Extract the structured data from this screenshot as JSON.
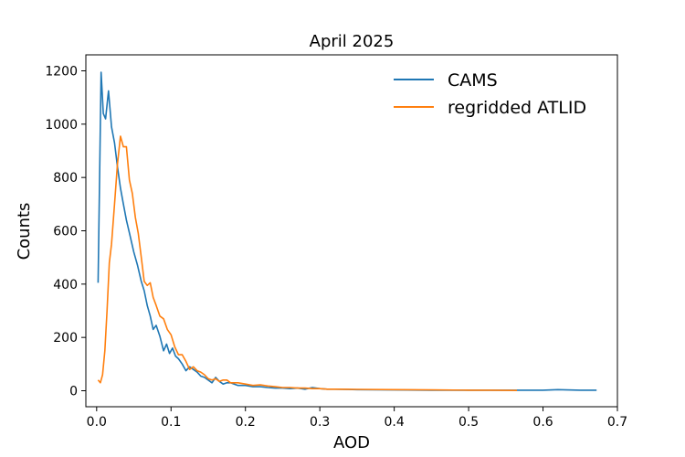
{
  "chart_data": {
    "type": "line",
    "title": "April 2025",
    "xlabel": "AOD",
    "ylabel": "Counts",
    "xlim": [
      -0.0145,
      0.7
    ],
    "ylim": [
      -60,
      1260
    ],
    "xticks": [
      "0.0",
      "0.1",
      "0.2",
      "0.3",
      "0.4",
      "0.5",
      "0.6",
      "0.7"
    ],
    "yticks": [
      "0",
      "200",
      "400",
      "600",
      "800",
      "1000",
      "1200"
    ],
    "grid": false,
    "legend_position": "top-right",
    "series": [
      {
        "name": "CAMS",
        "color": "#1f77b4",
        "x": [
          0.002,
          0.006,
          0.009,
          0.012,
          0.016,
          0.02,
          0.024,
          0.028,
          0.032,
          0.036,
          0.04,
          0.045,
          0.05,
          0.055,
          0.06,
          0.064,
          0.068,
          0.072,
          0.076,
          0.08,
          0.085,
          0.09,
          0.094,
          0.098,
          0.102,
          0.106,
          0.11,
          0.115,
          0.12,
          0.125,
          0.13,
          0.135,
          0.14,
          0.145,
          0.15,
          0.155,
          0.16,
          0.165,
          0.17,
          0.175,
          0.18,
          0.19,
          0.2,
          0.21,
          0.22,
          0.23,
          0.24,
          0.25,
          0.26,
          0.27,
          0.28,
          0.29,
          0.3,
          0.31,
          0.32,
          0.33,
          0.35,
          0.4,
          0.45,
          0.5,
          0.55,
          0.6,
          0.62,
          0.65,
          0.672
        ],
        "y": [
          405,
          1195,
          1040,
          1020,
          1125,
          990,
          930,
          840,
          760,
          700,
          640,
          580,
          520,
          470,
          410,
          375,
          320,
          280,
          230,
          245,
          205,
          150,
          175,
          140,
          160,
          130,
          120,
          100,
          75,
          90,
          80,
          70,
          55,
          50,
          40,
          30,
          50,
          35,
          25,
          30,
          30,
          20,
          20,
          15,
          15,
          12,
          10,
          10,
          8,
          10,
          6,
          12,
          8,
          6,
          6,
          5,
          4,
          3,
          2,
          2,
          2,
          2,
          4,
          2,
          2
        ]
      },
      {
        "name": "regridded ATLID",
        "color": "#ff7f0e",
        "x": [
          0.002,
          0.005,
          0.008,
          0.011,
          0.014,
          0.017,
          0.02,
          0.024,
          0.028,
          0.032,
          0.036,
          0.04,
          0.044,
          0.048,
          0.052,
          0.056,
          0.06,
          0.064,
          0.068,
          0.072,
          0.076,
          0.08,
          0.085,
          0.09,
          0.095,
          0.1,
          0.105,
          0.11,
          0.115,
          0.12,
          0.125,
          0.13,
          0.135,
          0.14,
          0.145,
          0.15,
          0.155,
          0.16,
          0.165,
          0.17,
          0.175,
          0.18,
          0.19,
          0.2,
          0.21,
          0.22,
          0.23,
          0.24,
          0.25,
          0.26,
          0.27,
          0.28,
          0.29,
          0.3,
          0.31,
          0.32,
          0.35,
          0.4,
          0.45,
          0.5,
          0.53,
          0.565
        ],
        "y": [
          40,
          30,
          60,
          150,
          300,
          480,
          550,
          700,
          850,
          955,
          915,
          915,
          790,
          740,
          650,
          590,
          500,
          410,
          395,
          405,
          350,
          320,
          280,
          270,
          230,
          210,
          165,
          135,
          135,
          110,
          80,
          90,
          75,
          70,
          60,
          45,
          40,
          45,
          35,
          40,
          40,
          30,
          30,
          25,
          20,
          22,
          18,
          15,
          12,
          12,
          10,
          10,
          8,
          8,
          6,
          6,
          5,
          4,
          3,
          2,
          2,
          1
        ]
      }
    ]
  }
}
